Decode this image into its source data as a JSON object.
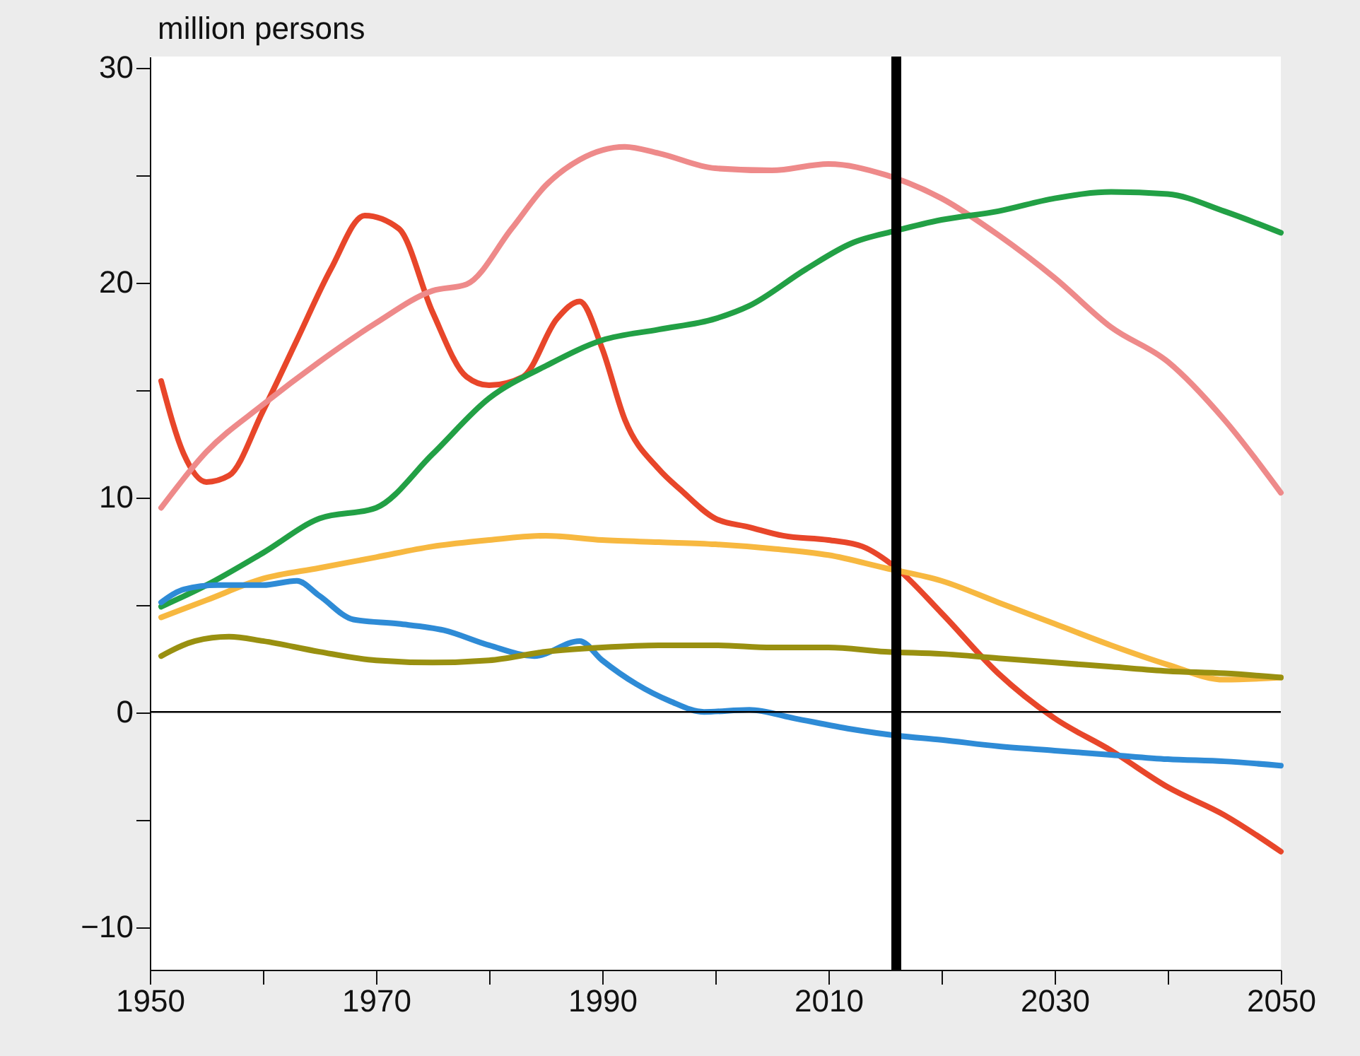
{
  "chart_data": {
    "type": "line",
    "ylabel": "million persons",
    "xlim": [
      1950,
      2050
    ],
    "ylim": [
      -12,
      30.5
    ],
    "xticks": [
      1950,
      {
        "value": 1960,
        "label": null
      },
      1970,
      {
        "value": 1980,
        "label": null
      },
      1990,
      {
        "value": 2000,
        "label": null
      },
      2010,
      {
        "value": 2020,
        "label": null
      },
      2030,
      {
        "value": 2040,
        "label": null
      },
      2050
    ],
    "yticks": [
      -10,
      {
        "value": -5,
        "label": null
      },
      0,
      {
        "value": 5,
        "label": null
      },
      10,
      {
        "value": 15,
        "label": null
      },
      20,
      {
        "value": 25,
        "label": null
      },
      30
    ],
    "grid": false,
    "legend": false,
    "marker": "none",
    "line_style": "solid",
    "ref_lines": [
      {
        "axis": "x",
        "value": 2016,
        "color": "#000000"
      },
      {
        "axis": "y",
        "value": 0,
        "color": "#000000"
      }
    ],
    "series": [
      {
        "color": "#e8462a",
        "x": [
          1951,
          1953,
          1955,
          1957,
          1960,
          1963,
          1966,
          1969,
          1972,
          1975,
          1978,
          1980,
          1983,
          1986,
          1988,
          1990,
          1992,
          1995,
          1997,
          2000,
          2003,
          2006,
          2010,
          2013,
          2016,
          2020,
          2025,
          2030,
          2035,
          2040,
          2045,
          2050
        ],
        "values": [
          15.4,
          12.0,
          10.7,
          11.0,
          14.0,
          17.3,
          20.6,
          23.1,
          22.5,
          18.6,
          15.6,
          15.2,
          15.6,
          18.3,
          19.1,
          16.9,
          13.6,
          11.3,
          10.3,
          9.0,
          8.6,
          8.2,
          8.0,
          7.7,
          6.7,
          4.6,
          1.8,
          -0.3,
          -1.8,
          -3.5,
          -4.8,
          -6.5
        ]
      },
      {
        "color": "#ee8a8a",
        "x": [
          1951,
          1955,
          1960,
          1965,
          1970,
          1975,
          1978,
          1982,
          1985,
          1988,
          1992,
          1995,
          2000,
          2005,
          2010,
          2015,
          2020,
          2025,
          2030,
          2035,
          2040,
          2045,
          2050
        ],
        "values": [
          9.5,
          12.1,
          14.3,
          16.3,
          18.1,
          19.6,
          19.9,
          22.5,
          24.5,
          25.7,
          26.3,
          26.0,
          25.3,
          25.2,
          25.5,
          25.0,
          23.9,
          22.2,
          20.2,
          17.9,
          16.3,
          13.6,
          10.2
        ]
      },
      {
        "color": "#22a045",
        "x": [
          1951,
          1955,
          1960,
          1965,
          1970,
          1975,
          1980,
          1985,
          1990,
          1995,
          2000,
          2003,
          2008,
          2012,
          2016,
          2020,
          2025,
          2030,
          2035,
          2040,
          2045,
          2050
        ],
        "values": [
          4.9,
          5.9,
          7.4,
          9.0,
          9.5,
          12.0,
          14.6,
          16.1,
          17.3,
          17.8,
          18.3,
          18.9,
          20.6,
          21.8,
          22.4,
          22.9,
          23.3,
          23.9,
          24.2,
          24.1,
          23.3,
          22.3
        ]
      },
      {
        "color": "#f7b840",
        "x": [
          1951,
          1955,
          1960,
          1965,
          1970,
          1975,
          1980,
          1985,
          1990,
          1995,
          2000,
          2005,
          2010,
          2015,
          2020,
          2025,
          2030,
          2035,
          2040,
          2045,
          2050
        ],
        "values": [
          4.4,
          5.2,
          6.2,
          6.7,
          7.2,
          7.7,
          8.0,
          8.2,
          8.0,
          7.9,
          7.8,
          7.6,
          7.3,
          6.7,
          6.1,
          5.1,
          4.1,
          3.1,
          2.2,
          1.5,
          1.6
        ]
      },
      {
        "color": "#2e8bd6",
        "x": [
          1951,
          1953,
          1956,
          1960,
          1963,
          1965,
          1968,
          1972,
          1976,
          1980,
          1984,
          1988,
          1990,
          1993,
          1996,
          1999,
          2003,
          2007,
          2012,
          2016,
          2020,
          2025,
          2030,
          2035,
          2040,
          2045,
          2050
        ],
        "values": [
          5.1,
          5.7,
          5.9,
          5.9,
          6.1,
          5.4,
          4.3,
          4.1,
          3.8,
          3.1,
          2.6,
          3.3,
          2.4,
          1.3,
          0.5,
          0.0,
          0.1,
          -0.3,
          -0.8,
          -1.1,
          -1.3,
          -1.6,
          -1.8,
          -2.0,
          -2.2,
          -2.3,
          -2.5
        ]
      },
      {
        "color": "#999010",
        "x": [
          1951,
          1954,
          1957,
          1960,
          1965,
          1970,
          1975,
          1980,
          1985,
          1990,
          1995,
          2000,
          2005,
          2010,
          2015,
          2020,
          2025,
          2030,
          2035,
          2040,
          2045,
          2050
        ],
        "values": [
          2.6,
          3.3,
          3.5,
          3.3,
          2.8,
          2.4,
          2.3,
          2.4,
          2.8,
          3.0,
          3.1,
          3.1,
          3.0,
          3.0,
          2.8,
          2.7,
          2.5,
          2.3,
          2.1,
          1.9,
          1.8,
          1.6
        ]
      }
    ]
  }
}
